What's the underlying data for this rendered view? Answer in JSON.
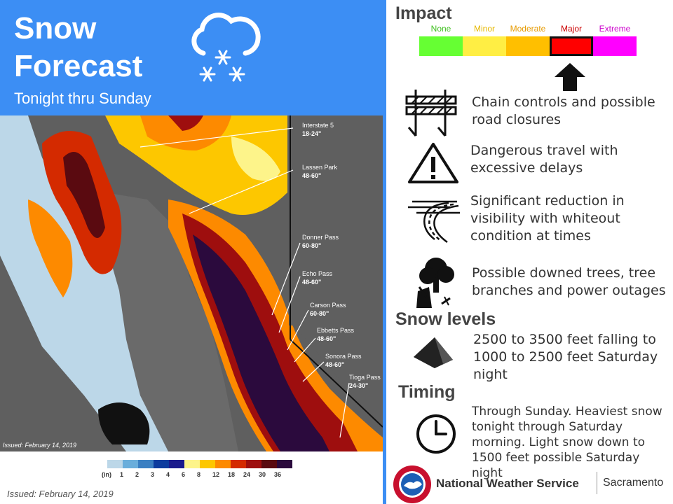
{
  "header": {
    "title_line1": "Snow",
    "title_line2": "Forecast",
    "subtitle": "Tonight thru Sunday"
  },
  "map": {
    "issued": "Issued: February 14, 2019",
    "callouts": [
      {
        "name": "Interstate 5",
        "amount": "18-24\""
      },
      {
        "name": "Lassen Park",
        "amount": "48-60\""
      },
      {
        "name": "Donner Pass",
        "amount": "60-80\""
      },
      {
        "name": "Echo Pass",
        "amount": "48-60\""
      },
      {
        "name": "Carson Pass",
        "amount": "60-80\""
      },
      {
        "name": "Ebbetts Pass",
        "amount": "48-60\""
      },
      {
        "name": "Sonora Pass",
        "amount": "48-60\""
      },
      {
        "name": "Tioga Pass",
        "amount": "24-30\""
      }
    ]
  },
  "legend": {
    "unit": "(in)",
    "ticks": [
      "1",
      "2",
      "3",
      "4",
      "6",
      "8",
      "12",
      "18",
      "24",
      "30",
      "36"
    ],
    "colors": [
      "#bcd7e8",
      "#6aaedb",
      "#3a7fc2",
      "#0c3b9e",
      "#1a1a8c",
      "#fdf48a",
      "#fdc700",
      "#fd8a00",
      "#d42a00",
      "#9e0e0e",
      "#5a0a10",
      "#2b0a3d"
    ]
  },
  "issued_bottom": "Issued: February 14, 2019",
  "impact": {
    "heading": "Impact",
    "levels": [
      {
        "label": "None",
        "color": "#66ff33",
        "label_color": "#3fbf1f"
      },
      {
        "label": "Minor",
        "color": "#ffee44",
        "label_color": "#e6b800"
      },
      {
        "label": "Moderate",
        "color": "#ffbf00",
        "label_color": "#e69a00"
      },
      {
        "label": "Major",
        "color": "#ff0000",
        "label_color": "#cc0000"
      },
      {
        "label": "Extreme",
        "color": "#ff00ff",
        "label_color": "#cc00cc"
      }
    ],
    "selected": "Major",
    "items": [
      {
        "icon": "road-barrier-icon",
        "text_line1": "Chain controls and possible",
        "text_line2": "road closures",
        "text_line3": ""
      },
      {
        "icon": "warning-triangle-icon",
        "text_line1": "Dangerous travel with",
        "text_line2": "excessive delays",
        "text_line3": ""
      },
      {
        "icon": "whiteout-road-icon",
        "text_line1": "Significant reduction in",
        "text_line2": "visibility with whiteout",
        "text_line3": "condition at times"
      },
      {
        "icon": "downed-tree-icon",
        "text_line1": "Possible downed trees, tree",
        "text_line2": "branches and power outages",
        "text_line3": ""
      }
    ]
  },
  "snow_levels": {
    "heading": "Snow levels",
    "icon": "mountain-icon",
    "text_line1": "2500 to 3500 feet falling to",
    "text_line2": "1000 to 2500 feet Saturday",
    "text_line3": "night"
  },
  "timing": {
    "heading": "Timing",
    "icon": "clock-icon",
    "text_line1": "Through Sunday. Heaviest snow",
    "text_line2": "tonight through Saturday",
    "text_line3": "morning. Light snow down to",
    "text_line4": "1500 feet possible Saturday night"
  },
  "footer": {
    "org": "National Weather Service",
    "office": "Sacramento"
  }
}
